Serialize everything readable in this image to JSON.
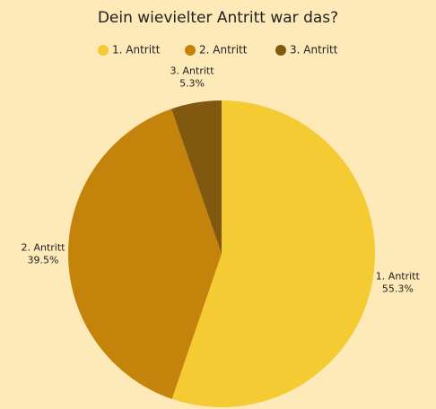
{
  "chart_data": {
    "type": "pie",
    "title": "Dein wievielter Antritt war das?",
    "categories": [
      "1. Antritt",
      "2. Antritt",
      "3. Antritt"
    ],
    "values": [
      55.3,
      39.5,
      5.3
    ],
    "value_labels": [
      "55.3%",
      "39.5%",
      "5.3%"
    ],
    "colors": [
      "#f5cb33",
      "#c4830a",
      "#80580f"
    ],
    "legend": "top"
  }
}
